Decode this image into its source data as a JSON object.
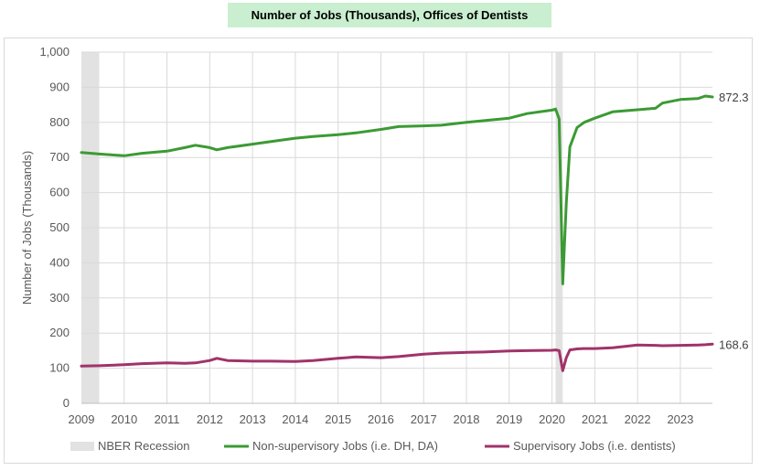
{
  "chart_data": {
    "type": "line",
    "title": "Number of Jobs (Thousands), Offices of Dentists",
    "xlabel": "",
    "ylabel": "Number of Jobs (Thousands)",
    "ylim": [
      0,
      1000
    ],
    "xlim": [
      "2009-01",
      "2023-10"
    ],
    "y_ticks": [
      "0",
      "100",
      "200",
      "300",
      "400",
      "500",
      "600",
      "700",
      "800",
      "900",
      "1,000"
    ],
    "x_ticks": [
      "2009",
      "2010",
      "2011",
      "2012",
      "2013",
      "2014",
      "2015",
      "2016",
      "2017",
      "2018",
      "2019",
      "2020",
      "2021",
      "2022",
      "2023"
    ],
    "grid": true,
    "legend_position": "bottom",
    "recessions": [
      {
        "name": "NBER Recession",
        "start": "2009-01",
        "end": "2009-06"
      },
      {
        "name": "NBER Recession",
        "start": "2020-02",
        "end": "2020-04"
      }
    ],
    "series": [
      {
        "name": "Non-supervisory Jobs (i.e. DH, DA)",
        "color": "#3c9a34",
        "end_label": "872.3",
        "points": [
          [
            "2009-01",
            714
          ],
          [
            "2009-06",
            710
          ],
          [
            "2010-01",
            705
          ],
          [
            "2010-06",
            712
          ],
          [
            "2011-01",
            718
          ],
          [
            "2011-06",
            728
          ],
          [
            "2011-09",
            735
          ],
          [
            "2012-01",
            728
          ],
          [
            "2012-03",
            722
          ],
          [
            "2012-06",
            728
          ],
          [
            "2013-01",
            738
          ],
          [
            "2013-06",
            745
          ],
          [
            "2014-01",
            755
          ],
          [
            "2014-06",
            760
          ],
          [
            "2015-01",
            765
          ],
          [
            "2015-06",
            770
          ],
          [
            "2016-01",
            780
          ],
          [
            "2016-06",
            788
          ],
          [
            "2017-01",
            790
          ],
          [
            "2017-06",
            792
          ],
          [
            "2018-01",
            800
          ],
          [
            "2018-06",
            805
          ],
          [
            "2019-01",
            812
          ],
          [
            "2019-06",
            825
          ],
          [
            "2020-01",
            835
          ],
          [
            "2020-02",
            838
          ],
          [
            "2020-03",
            810
          ],
          [
            "2020-04",
            340
          ],
          [
            "2020-05",
            570
          ],
          [
            "2020-06",
            730
          ],
          [
            "2020-08",
            785
          ],
          [
            "2020-10",
            800
          ],
          [
            "2021-01",
            812
          ],
          [
            "2021-06",
            830
          ],
          [
            "2022-01",
            836
          ],
          [
            "2022-06",
            840
          ],
          [
            "2022-08",
            855
          ],
          [
            "2023-01",
            865
          ],
          [
            "2023-06",
            868
          ],
          [
            "2023-08",
            875
          ],
          [
            "2023-10",
            872.3
          ]
        ]
      },
      {
        "name": "Supervisory Jobs (i.e. dentists)",
        "color": "#a0336a",
        "end_label": "168.6",
        "points": [
          [
            "2009-01",
            106
          ],
          [
            "2009-06",
            107
          ],
          [
            "2010-01",
            110
          ],
          [
            "2010-06",
            113
          ],
          [
            "2011-01",
            115
          ],
          [
            "2011-06",
            114
          ],
          [
            "2011-09",
            115
          ],
          [
            "2012-01",
            122
          ],
          [
            "2012-03",
            128
          ],
          [
            "2012-06",
            122
          ],
          [
            "2013-01",
            120
          ],
          [
            "2013-06",
            120
          ],
          [
            "2014-01",
            119
          ],
          [
            "2014-06",
            122
          ],
          [
            "2015-01",
            128
          ],
          [
            "2015-06",
            132
          ],
          [
            "2016-01",
            130
          ],
          [
            "2016-06",
            133
          ],
          [
            "2017-01",
            140
          ],
          [
            "2017-06",
            143
          ],
          [
            "2018-01",
            145
          ],
          [
            "2018-06",
            146
          ],
          [
            "2019-01",
            149
          ],
          [
            "2019-06",
            150
          ],
          [
            "2020-01",
            151
          ],
          [
            "2020-02",
            152
          ],
          [
            "2020-03",
            150
          ],
          [
            "2020-04",
            93
          ],
          [
            "2020-05",
            130
          ],
          [
            "2020-06",
            152
          ],
          [
            "2020-08",
            155
          ],
          [
            "2020-10",
            156
          ],
          [
            "2021-01",
            156
          ],
          [
            "2021-06",
            158
          ],
          [
            "2022-01",
            166
          ],
          [
            "2022-06",
            165
          ],
          [
            "2022-08",
            164
          ],
          [
            "2023-01",
            165
          ],
          [
            "2023-06",
            166
          ],
          [
            "2023-08",
            167
          ],
          [
            "2023-10",
            168.6
          ]
        ]
      }
    ]
  }
}
